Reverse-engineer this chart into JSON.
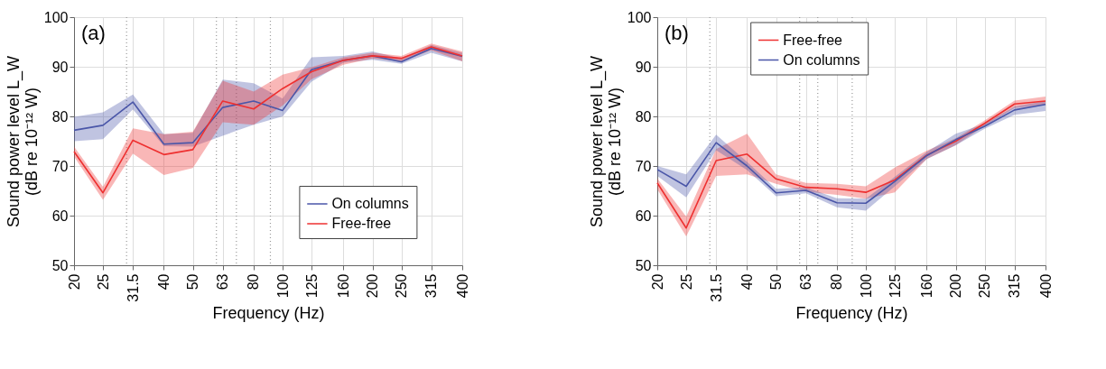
{
  "chart_data": [
    {
      "type": "line",
      "xlabel": "Frequency (Hz)",
      "ylabel": "Sound power level L_W\n(dB re 10⁻¹² W)",
      "annotations": [
        "(a)"
      ],
      "x": [
        20,
        25,
        31.5,
        40,
        50,
        63,
        80,
        100,
        125,
        160,
        200,
        250,
        315,
        400
      ],
      "xlim": [
        20,
        400
      ],
      "xticks": [
        20,
        25,
        31.5,
        40,
        50,
        63,
        80,
        100,
        125,
        160,
        200,
        250,
        315,
        400
      ],
      "log": "x",
      "ylim": [
        50,
        100
      ],
      "yticks": [
        50,
        60,
        70,
        80,
        90,
        100
      ],
      "grid": true,
      "legend": "bottom right",
      "line_style": "solid",
      "marker": "none",
      "ref_lines": [
        {
          "axis": "x",
          "value": 30,
          "color": "#999999",
          "line_style": "dotted"
        },
        {
          "axis": "x",
          "value": 60,
          "color": "#999999",
          "line_style": "dotted"
        },
        {
          "axis": "x",
          "value": 70,
          "color": "#999999",
          "line_style": "dotted"
        },
        {
          "axis": "x",
          "value": 91,
          "color": "#999999",
          "line_style": "dotted"
        }
      ],
      "series": [
        {
          "name": "On columns",
          "color": "#4a56a8",
          "values": [
            77.2,
            78.2,
            82.9,
            74.4,
            74.7,
            81.8,
            83.1,
            81.2,
            89.4,
            91.3,
            92.2,
            91.0,
            93.7,
            92.1
          ],
          "lower": [
            75.0,
            75.4,
            81.4,
            74.0,
            73.9,
            76.1,
            78.3,
            80.0,
            87.0,
            90.8,
            91.4,
            90.6,
            92.8,
            91.1
          ],
          "upper": [
            79.9,
            80.8,
            84.4,
            76.4,
            76.7,
            87.4,
            86.7,
            83.6,
            91.9,
            92.2,
            93.1,
            91.7,
            94.4,
            92.8
          ]
        },
        {
          "name": "Free-free",
          "color": "#ee3030",
          "values": [
            72.9,
            64.6,
            75.2,
            72.3,
            73.3,
            83.1,
            81.5,
            85.6,
            89.0,
            91.3,
            92.2,
            91.7,
            94.0,
            92.2
          ],
          "lower": [
            71.9,
            63.2,
            72.5,
            68.2,
            69.6,
            78.8,
            78.3,
            82.2,
            87.5,
            90.4,
            91.7,
            91.1,
            93.3,
            91.1
          ],
          "upper": [
            73.9,
            65.8,
            77.6,
            76.4,
            76.9,
            87.2,
            85.0,
            88.4,
            89.9,
            91.9,
            92.8,
            92.2,
            94.7,
            93.1
          ]
        }
      ]
    },
    {
      "type": "line",
      "xlabel": "Frequency (Hz)",
      "ylabel": "Sound power level L_W\n(dB re 10⁻¹² W)",
      "annotations": [
        "(b)"
      ],
      "x": [
        20,
        25,
        31.5,
        40,
        50,
        63,
        80,
        100,
        125,
        160,
        200,
        250,
        315,
        400
      ],
      "xlim": [
        20,
        400
      ],
      "xticks": [
        20,
        25,
        31.5,
        40,
        50,
        63,
        80,
        100,
        125,
        160,
        200,
        250,
        315,
        400
      ],
      "log": "x",
      "ylim": [
        50,
        100
      ],
      "yticks": [
        50,
        60,
        70,
        80,
        90,
        100
      ],
      "grid": true,
      "legend": "top",
      "line_style": "solid",
      "marker": "none",
      "ref_lines": [
        {
          "axis": "x",
          "value": 30,
          "color": "#999999",
          "line_style": "dotted"
        },
        {
          "axis": "x",
          "value": 60,
          "color": "#999999",
          "line_style": "dotted"
        },
        {
          "axis": "x",
          "value": 69,
          "color": "#999999",
          "line_style": "dotted"
        },
        {
          "axis": "x",
          "value": 90,
          "color": "#999999",
          "line_style": "dotted"
        }
      ],
      "series": [
        {
          "name": "Free-free",
          "color": "#ee3030",
          "values": [
            66.6,
            57.5,
            71.1,
            72.4,
            67.4,
            65.7,
            65.4,
            64.7,
            67.2,
            72.2,
            75.0,
            78.6,
            82.5,
            83.1
          ],
          "lower": [
            65.3,
            55.8,
            68.0,
            68.3,
            66.4,
            64.8,
            64.2,
            63.4,
            64.7,
            71.4,
            74.2,
            78.1,
            81.7,
            82.3
          ],
          "upper": [
            67.5,
            59.8,
            73.4,
            76.5,
            68.3,
            66.6,
            66.4,
            65.9,
            69.7,
            73.1,
            75.6,
            79.2,
            83.2,
            84.0
          ]
        },
        {
          "name": "On columns",
          "color": "#4a56a8",
          "values": [
            69.3,
            65.9,
            74.7,
            70.0,
            64.6,
            65.1,
            62.6,
            62.5,
            66.9,
            72.1,
            75.3,
            78.0,
            81.3,
            82.4
          ],
          "lower": [
            68.0,
            63.7,
            73.2,
            69.2,
            63.9,
            64.5,
            61.7,
            61.0,
            65.9,
            71.4,
            74.2,
            77.5,
            80.3,
            81.1
          ],
          "upper": [
            70.0,
            68.3,
            76.3,
            70.8,
            65.4,
            65.7,
            63.5,
            63.4,
            67.8,
            72.8,
            76.5,
            78.5,
            82.0,
            83.1
          ]
        }
      ]
    }
  ]
}
